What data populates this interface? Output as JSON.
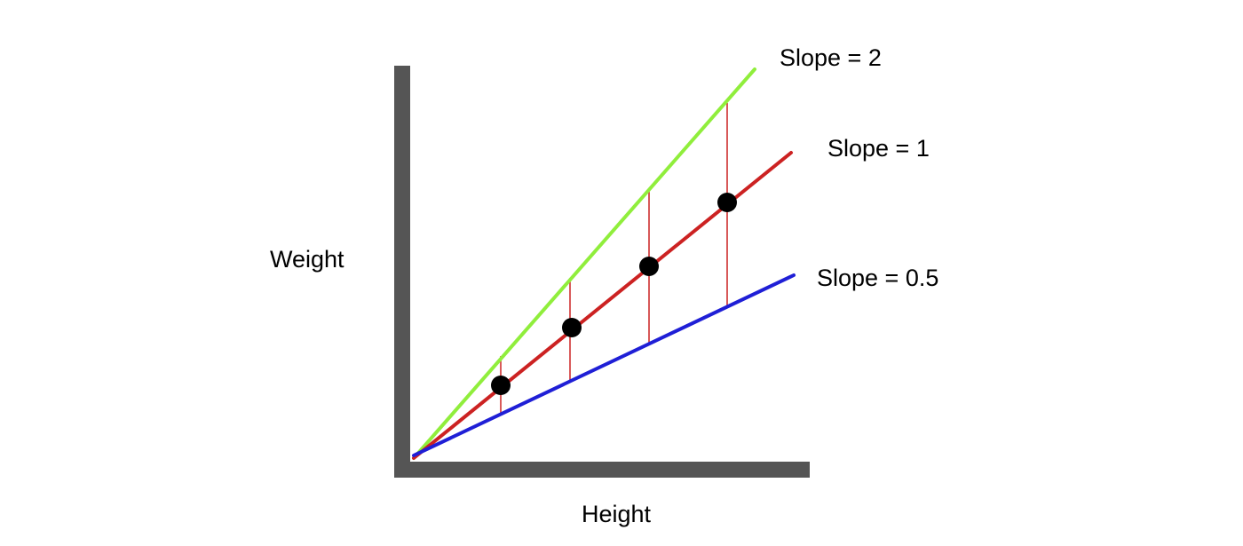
{
  "axes": {
    "x_label": "Height",
    "y_label": "Weight",
    "axis_color": "#555555"
  },
  "lines": [
    {
      "label": "Slope = 2",
      "slope": 2,
      "color": "#90ee3c"
    },
    {
      "label": "Slope = 1",
      "slope": 1,
      "color": "#cc2222"
    },
    {
      "label": "Slope = 0.5",
      "slope": 0.5,
      "color": "#1f1fd6"
    }
  ],
  "points": {
    "color": "#000000",
    "x": [
      1,
      2,
      3,
      4
    ]
  },
  "residual_color": "#cc2222"
}
